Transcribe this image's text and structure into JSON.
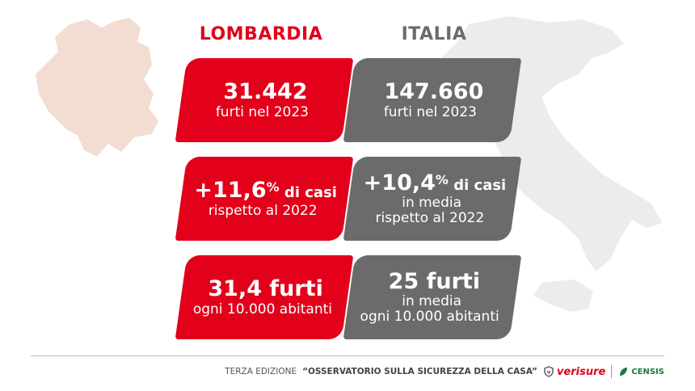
{
  "columns": {
    "lombardia": "LOMBARDIA",
    "italia": "ITALIA"
  },
  "lombardia": {
    "card1": {
      "value": "31.442",
      "text": "furti nel 2023"
    },
    "card2": {
      "value": "+11,6",
      "percent": "%",
      "suffix": " di casi",
      "text": "rispetto al 2022"
    },
    "card3": {
      "value": "31,4 furti",
      "text": "ogni 10.000 abitanti"
    }
  },
  "italia": {
    "card1": {
      "value": "147.660",
      "text": "furti nel 2023"
    },
    "card2": {
      "value": "+10,4",
      "percent": "%",
      "suffix": " di casi",
      "text1": "in media",
      "text2": "rispetto al 2022"
    },
    "card3": {
      "value": "25 furti",
      "text1": "in media",
      "text2": "ogni 10.000 abitanti"
    }
  },
  "footer": {
    "prefix": "TERZA EDIZIONE",
    "title": "“OSSERVATORIO SULLA SICUREZZA DELLA CASA”",
    "brand1": "verisure",
    "brand2": "CENSIS"
  },
  "colors": {
    "red": "#e2001a",
    "grey": "#6b6b6b",
    "lombardia_map": "#f3ddd3",
    "italy_map": "#ececec"
  }
}
